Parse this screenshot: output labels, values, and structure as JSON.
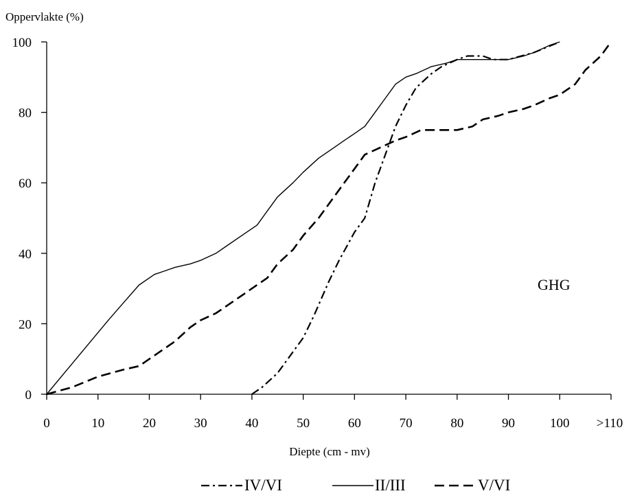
{
  "chart_data": {
    "type": "line",
    "title": "",
    "ylabel": "Oppervlakte (%)",
    "xlabel": "Diepte (cm - mv)",
    "annotation": "GHG",
    "ylim": [
      0,
      100
    ],
    "xlim": [
      0,
      110
    ],
    "x_ticks": [
      0,
      10,
      20,
      30,
      40,
      50,
      60,
      70,
      80,
      90,
      100,
      110
    ],
    "x_tick_labels": [
      "0",
      "10",
      "20",
      "30",
      "40",
      "50",
      "60",
      "70",
      "80",
      "90",
      "100",
      ">110"
    ],
    "y_ticks": [
      0,
      20,
      40,
      60,
      80,
      100
    ],
    "y_tick_labels": [
      "0",
      "20",
      "40",
      "60",
      "80",
      "100"
    ],
    "grid": false,
    "legend_position": "bottom",
    "series": [
      {
        "name": "IV/VI",
        "dash": "dashdot",
        "color": "#000000",
        "x": [
          40,
          42,
          45,
          47,
          50,
          52,
          55,
          57,
          60,
          62,
          64,
          66,
          68,
          70,
          72,
          75,
          77,
          80,
          82,
          85,
          87,
          90,
          95,
          100
        ],
        "y": [
          0,
          2,
          6,
          10,
          16,
          22,
          32,
          38,
          46,
          50,
          60,
          68,
          76,
          82,
          87,
          91,
          93,
          95,
          96,
          96,
          95,
          95,
          97,
          100
        ]
      },
      {
        "name": "II/III",
        "dash": "solid",
        "color": "#000000",
        "x": [
          0,
          4,
          8,
          12,
          15,
          18,
          21,
          23,
          25,
          28,
          30,
          33,
          35,
          38,
          41,
          43,
          45,
          48,
          50,
          53,
          56,
          58,
          60,
          62,
          64,
          66,
          68,
          70,
          72,
          75,
          78,
          80,
          83,
          85,
          88,
          90,
          93,
          95,
          98,
          100
        ],
        "y": [
          0,
          7,
          14,
          21,
          26,
          31,
          34,
          35,
          36,
          37,
          38,
          40,
          42,
          45,
          48,
          52,
          56,
          60,
          63,
          67,
          70,
          72,
          74,
          76,
          80,
          84,
          88,
          90,
          91,
          93,
          94,
          95,
          95,
          95,
          95,
          95,
          96,
          97,
          99,
          100
        ]
      },
      {
        "name": "V/VI",
        "dash": "dashed",
        "color": "#000000",
        "x": [
          0,
          5,
          10,
          15,
          18,
          20,
          23,
          25,
          28,
          30,
          33,
          35,
          38,
          40,
          43,
          45,
          48,
          50,
          53,
          55,
          58,
          60,
          62,
          65,
          68,
          70,
          73,
          75,
          78,
          80,
          83,
          85,
          88,
          90,
          93,
          95,
          98,
          100,
          103,
          105,
          108,
          110
        ],
        "y": [
          0,
          2,
          5,
          7,
          8,
          10,
          13,
          15,
          19,
          21,
          23,
          25,
          28,
          30,
          33,
          37,
          41,
          45,
          50,
          54,
          60,
          64,
          68,
          70,
          72,
          73,
          75,
          75,
          75,
          75,
          76,
          78,
          79,
          80,
          81,
          82,
          84,
          85,
          88,
          92,
          96,
          100
        ]
      }
    ]
  }
}
